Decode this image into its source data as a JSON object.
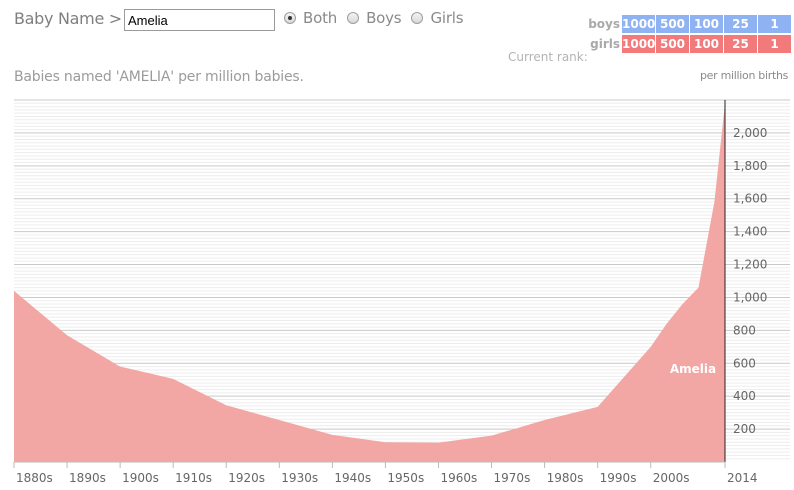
{
  "header": {
    "label": "Baby Name >",
    "name_value": "Amelia",
    "filters": [
      {
        "label": "Both",
        "selected": true
      },
      {
        "label": "Boys",
        "selected": false
      },
      {
        "label": "Girls",
        "selected": false
      }
    ]
  },
  "rank_legend": {
    "rows": [
      {
        "label": "boys",
        "color": "#8fb3f2",
        "cells": [
          "1000",
          "500",
          "100",
          "25",
          "1"
        ]
      },
      {
        "label": "girls",
        "color": "#f27a7a",
        "cells": [
          "1000",
          "500",
          "100",
          "25",
          "1"
        ]
      }
    ],
    "current_rank_label": "Current rank:"
  },
  "subtitle": "Babies named 'AMELIA' per million babies.",
  "unit_label": "per million births",
  "chart_data": {
    "type": "area",
    "series": [
      {
        "name": "Amelia",
        "color": "#f2a7a5",
        "x": [
          1880,
          1890,
          1900,
          1910,
          1920,
          1930,
          1940,
          1950,
          1960,
          1970,
          1980,
          1990,
          2000,
          2003,
          2006,
          2009,
          2012,
          2014
        ],
        "values": [
          1040,
          770,
          580,
          505,
          345,
          255,
          165,
          120,
          118,
          160,
          255,
          335,
          700,
          840,
          960,
          1060,
          1580,
          2180
        ]
      }
    ],
    "x_tick_labels": [
      "1880s",
      "1890s",
      "1900s",
      "1910s",
      "1920s",
      "1930s",
      "1940s",
      "1950s",
      "1960s",
      "1970s",
      "1980s",
      "1990s",
      "2000s",
      "2014"
    ],
    "y_tick_labels": [
      "200",
      "400",
      "600",
      "800",
      "1,000",
      "1,200",
      "1,400",
      "1,600",
      "1,800",
      "2,000"
    ],
    "y_ticks": [
      200,
      400,
      600,
      800,
      1000,
      1200,
      1400,
      1600,
      1800,
      2000
    ],
    "xlim": [
      1880,
      2014
    ],
    "ylim": [
      0,
      2200
    ],
    "grid": true
  }
}
